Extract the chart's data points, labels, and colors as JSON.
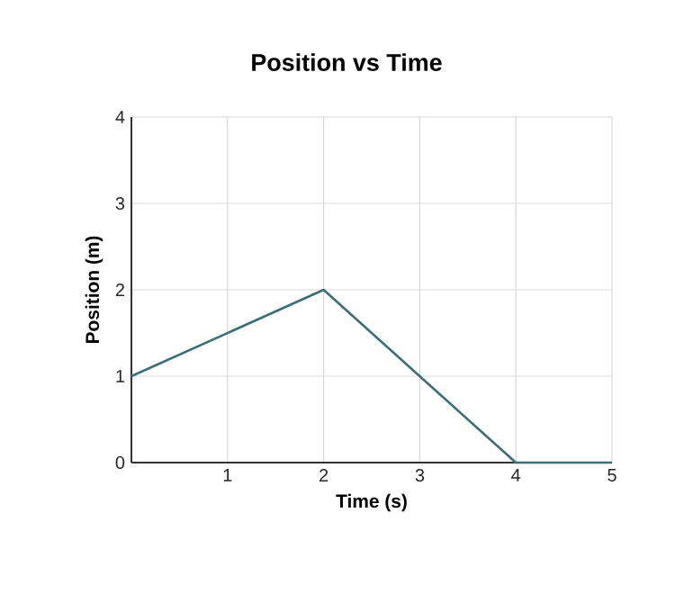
{
  "chart_data": {
    "type": "line",
    "title": "Position vs Time",
    "xlabel": "Time (s)",
    "ylabel": "Position (m)",
    "x": [
      0,
      2,
      4,
      5
    ],
    "series": [
      {
        "color": "#3b6e78",
        "values": [
          1,
          2,
          0,
          0
        ]
      }
    ],
    "xlim": [
      0,
      5
    ],
    "ylim": [
      0,
      4
    ],
    "xticks": [
      1,
      2,
      3,
      4,
      5
    ],
    "yticks": [
      0,
      1,
      2,
      3,
      4
    ],
    "grid": true,
    "marker": "none",
    "line_style": "solid"
  }
}
